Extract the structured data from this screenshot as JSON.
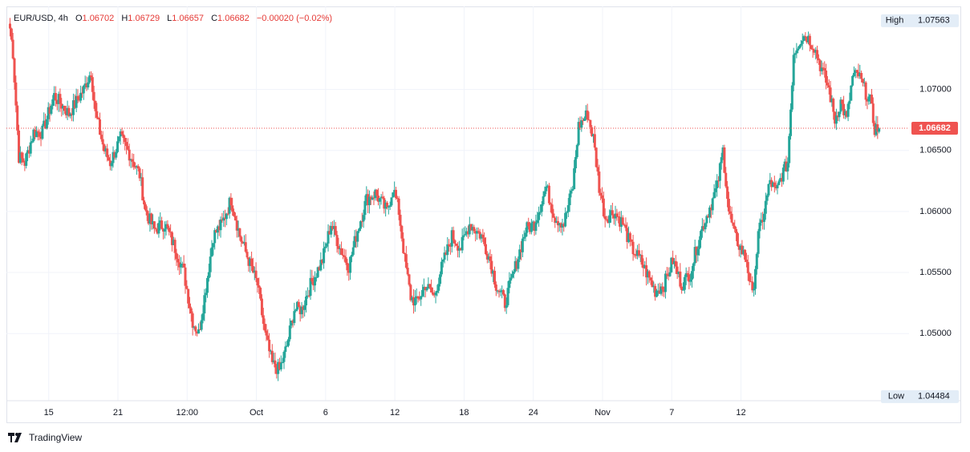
{
  "legend": {
    "symbol": "EUR/USD",
    "interval": "4h",
    "open_label": "O",
    "open": "1.06702",
    "high_label": "H",
    "high": "1.06729",
    "low_label": "L",
    "low": "1.06657",
    "close_label": "C",
    "close": "1.06682",
    "change": "−0.00020 (−0.02%)"
  },
  "brand": {
    "name": "TradingView"
  },
  "colors": {
    "up": "#26a69a",
    "down": "#ef5350",
    "price_label_bg": "#ef5350",
    "grid": "#f0f3fa",
    "axis_text": "#131722",
    "hl_label_bg": "#e3edf7"
  },
  "chart_data": {
    "type": "candlestick",
    "title": "EUR/USD, 4h",
    "ylim": [
      1.0445,
      1.0768
    ],
    "y_ticks": [
      "1.05000",
      "1.05500",
      "1.06000",
      "1.06500",
      "1.07000"
    ],
    "x_ticks": [
      "15",
      "21",
      "12:00",
      "Oct",
      "6",
      "12",
      "18",
      "24",
      "Nov",
      "7",
      "12"
    ],
    "x_tick_index": [
      14,
      61,
      108,
      155,
      202,
      249,
      296,
      343,
      390,
      437,
      484
    ],
    "last_price": 1.06682,
    "last_price_label": "1.06682",
    "high_label": "High",
    "high_value": "1.07563",
    "high": 1.07563,
    "low_label": "Low",
    "low_value": "1.04484",
    "low": 1.04484,
    "anchors": [
      [
        0,
        1.075
      ],
      [
        2,
        1.073
      ],
      [
        6,
        1.0645
      ],
      [
        10,
        1.064
      ],
      [
        16,
        1.0665
      ],
      [
        22,
        1.0665
      ],
      [
        30,
        1.0695
      ],
      [
        40,
        1.068
      ],
      [
        50,
        1.07
      ],
      [
        55,
        1.0715
      ],
      [
        58,
        1.068
      ],
      [
        64,
        1.065
      ],
      [
        68,
        1.064
      ],
      [
        75,
        1.066
      ],
      [
        80,
        1.065
      ],
      [
        88,
        1.063
      ],
      [
        92,
        1.06
      ],
      [
        98,
        1.0585
      ],
      [
        105,
        1.059
      ],
      [
        112,
        1.057
      ],
      [
        118,
        1.055
      ],
      [
        124,
        1.051
      ],
      [
        128,
        1.05
      ],
      [
        132,
        1.053
      ],
      [
        138,
        1.058
      ],
      [
        144,
        1.059
      ],
      [
        150,
        1.061
      ],
      [
        156,
        1.058
      ],
      [
        162,
        1.056
      ],
      [
        168,
        1.054
      ],
      [
        173,
        1.05
      ],
      [
        178,
        1.0475
      ],
      [
        183,
        1.047
      ],
      [
        188,
        1.049
      ],
      [
        193,
        1.052
      ],
      [
        198,
        1.052
      ],
      [
        204,
        1.054
      ],
      [
        212,
        1.056
      ],
      [
        218,
        1.059
      ],
      [
        224,
        1.057
      ],
      [
        230,
        1.0555
      ],
      [
        236,
        1.0585
      ],
      [
        242,
        1.061
      ],
      [
        248,
        1.0615
      ],
      [
        256,
        1.06
      ],
      [
        260,
        1.062
      ],
      [
        264,
        1.06
      ],
      [
        268,
        1.056
      ],
      [
        272,
        1.053
      ],
      [
        276,
        1.0525
      ],
      [
        282,
        1.054
      ],
      [
        288,
        1.053
      ],
      [
        292,
        1.055
      ],
      [
        300,
        1.058
      ],
      [
        306,
        1.057
      ],
      [
        312,
        1.059
      ],
      [
        320,
        1.058
      ],
      [
        326,
        1.056
      ],
      [
        330,
        1.054
      ],
      [
        336,
        1.0525
      ],
      [
        342,
        1.055
      ],
      [
        350,
        1.0585
      ],
      [
        356,
        1.059
      ],
      [
        364,
        1.062
      ],
      [
        370,
        1.0595
      ],
      [
        376,
        1.059
      ],
      [
        382,
        1.062
      ],
      [
        386,
        1.067
      ],
      [
        392,
        1.068
      ],
      [
        396,
        1.066
      ],
      [
        400,
        1.062
      ],
      [
        404,
        1.0595
      ],
      [
        410,
        1.06
      ],
      [
        416,
        1.059
      ],
      [
        422,
        1.057
      ],
      [
        428,
        1.056
      ],
      [
        432,
        1.055
      ],
      [
        438,
        1.0535
      ],
      [
        444,
        1.054
      ],
      [
        450,
        1.056
      ],
      [
        456,
        1.054
      ],
      [
        462,
        1.055
      ],
      [
        468,
        1.058
      ],
      [
        474,
        1.06
      ],
      [
        480,
        1.062
      ],
      [
        484,
        1.065
      ],
      [
        488,
        1.06
      ],
      [
        492,
        1.058
      ],
      [
        496,
        1.057
      ],
      [
        500,
        1.056
      ],
      [
        504,
        1.053
      ],
      [
        508,
        1.058
      ],
      [
        512,
        1.06
      ],
      [
        516,
        1.0625
      ],
      [
        520,
        1.0615
      ],
      [
        524,
        1.063
      ],
      [
        528,
        1.064
      ],
      [
        532,
        1.073
      ],
      [
        536,
        1.074
      ],
      [
        540,
        1.0745
      ],
      [
        546,
        1.0735
      ],
      [
        550,
        1.072
      ],
      [
        556,
        1.07
      ],
      [
        560,
        1.0675
      ],
      [
        564,
        1.069
      ],
      [
        568,
        1.0675
      ],
      [
        572,
        1.071
      ],
      [
        576,
        1.0712
      ],
      [
        580,
        1.07
      ],
      [
        584,
        1.069
      ],
      [
        587,
        1.0668
      ],
      [
        590,
        1.0668
      ]
    ]
  }
}
